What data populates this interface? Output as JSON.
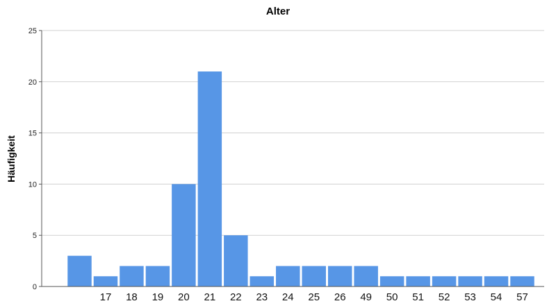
{
  "chart_data": {
    "type": "bar",
    "title": "Alter",
    "xlabel": "",
    "ylabel": "Häufigkeit",
    "categories": [
      "",
      "17",
      "18",
      "19",
      "20",
      "21",
      "22",
      "23",
      "24",
      "25",
      "26",
      "49",
      "50",
      "51",
      "52",
      "53",
      "54",
      "57"
    ],
    "values": [
      3,
      1,
      2,
      2,
      10,
      21,
      5,
      1,
      2,
      2,
      2,
      2,
      1,
      1,
      1,
      1,
      1,
      1
    ],
    "ylim": [
      0,
      25
    ],
    "yticks": [
      0,
      5,
      10,
      15,
      20,
      25
    ],
    "grid": true,
    "bar_color": "#5796e6"
  }
}
